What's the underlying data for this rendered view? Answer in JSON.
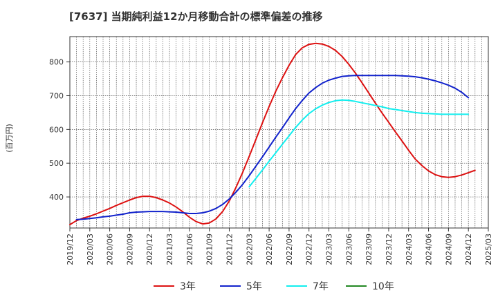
{
  "chart_data": {
    "type": "line",
    "title": "[7637]  当期純利益12か月移動合計の標準偏差の推移",
    "ylabel": "(百万円)",
    "xlabel": "",
    "x_tick_labels": [
      "2019/12",
      "2020/03",
      "2020/06",
      "2020/09",
      "2020/12",
      "2021/03",
      "2021/06",
      "2021/09",
      "2021/12",
      "2022/03",
      "2022/06",
      "2022/09",
      "2022/12",
      "2023/03",
      "2023/06",
      "2023/09",
      "2023/12",
      "2024/03",
      "2024/06",
      "2024/09",
      "2024/12",
      "2025/03"
    ],
    "y_ticks": [
      400,
      500,
      600,
      700,
      800
    ],
    "xlim": [
      "2019/12",
      "2025/03"
    ],
    "ylim": [
      308,
      875
    ],
    "grid": true,
    "legend_position": "bottom",
    "series": [
      {
        "name": "3年",
        "color": "#dd1111",
        "points": [
          [
            "2019/12",
            318
          ],
          [
            "2020/01",
            330
          ],
          [
            "2020/02",
            337
          ],
          [
            "2020/03",
            343
          ],
          [
            "2020/04",
            350
          ],
          [
            "2020/05",
            358
          ],
          [
            "2020/06",
            366
          ],
          [
            "2020/07",
            375
          ],
          [
            "2020/08",
            383
          ],
          [
            "2020/09",
            391
          ],
          [
            "2020/10",
            398
          ],
          [
            "2020/11",
            402
          ],
          [
            "2020/12",
            402
          ],
          [
            "2021/01",
            398
          ],
          [
            "2021/02",
            391
          ],
          [
            "2021/03",
            382
          ],
          [
            "2021/04",
            370
          ],
          [
            "2021/05",
            356
          ],
          [
            "2021/06",
            340
          ],
          [
            "2021/07",
            327
          ],
          [
            "2021/08",
            320
          ],
          [
            "2021/09",
            323
          ],
          [
            "2021/10",
            335
          ],
          [
            "2021/11",
            357
          ],
          [
            "2021/12",
            388
          ],
          [
            "2022/01",
            428
          ],
          [
            "2022/02",
            472
          ],
          [
            "2022/03",
            520
          ],
          [
            "2022/04",
            570
          ],
          [
            "2022/05",
            620
          ],
          [
            "2022/06",
            668
          ],
          [
            "2022/07",
            713
          ],
          [
            "2022/08",
            753
          ],
          [
            "2022/09",
            790
          ],
          [
            "2022/10",
            822
          ],
          [
            "2022/11",
            842
          ],
          [
            "2022/12",
            852
          ],
          [
            "2023/01",
            855
          ],
          [
            "2023/02",
            853
          ],
          [
            "2023/03",
            846
          ],
          [
            "2023/04",
            834
          ],
          [
            "2023/05",
            816
          ],
          [
            "2023/06",
            793
          ],
          [
            "2023/07",
            767
          ],
          [
            "2023/08",
            738
          ],
          [
            "2023/09",
            708
          ],
          [
            "2023/10",
            678
          ],
          [
            "2023/11",
            649
          ],
          [
            "2023/12",
            621
          ],
          [
            "2024/01",
            593
          ],
          [
            "2024/02",
            566
          ],
          [
            "2024/03",
            538
          ],
          [
            "2024/04",
            512
          ],
          [
            "2024/05",
            493
          ],
          [
            "2024/06",
            477
          ],
          [
            "2024/07",
            466
          ],
          [
            "2024/08",
            460
          ],
          [
            "2024/09",
            458
          ],
          [
            "2024/10",
            460
          ],
          [
            "2024/11",
            465
          ],
          [
            "2024/12",
            472
          ],
          [
            "2025/01",
            479
          ]
        ]
      },
      {
        "name": "5年",
        "color": "#1122cc",
        "points": [
          [
            "2020/01",
            333
          ],
          [
            "2020/02",
            334
          ],
          [
            "2020/03",
            336
          ],
          [
            "2020/04",
            338
          ],
          [
            "2020/05",
            341
          ],
          [
            "2020/06",
            343
          ],
          [
            "2020/07",
            346
          ],
          [
            "2020/08",
            349
          ],
          [
            "2020/09",
            353
          ],
          [
            "2020/10",
            355
          ],
          [
            "2020/11",
            356
          ],
          [
            "2020/12",
            357
          ],
          [
            "2021/01",
            357
          ],
          [
            "2021/02",
            357
          ],
          [
            "2021/03",
            356
          ],
          [
            "2021/04",
            355
          ],
          [
            "2021/05",
            353
          ],
          [
            "2021/06",
            351
          ],
          [
            "2021/07",
            351
          ],
          [
            "2021/08",
            353
          ],
          [
            "2021/09",
            358
          ],
          [
            "2021/10",
            366
          ],
          [
            "2021/11",
            378
          ],
          [
            "2021/12",
            394
          ],
          [
            "2022/01",
            414
          ],
          [
            "2022/02",
            437
          ],
          [
            "2022/03",
            463
          ],
          [
            "2022/04",
            491
          ],
          [
            "2022/05",
            519
          ],
          [
            "2022/06",
            548
          ],
          [
            "2022/07",
            577
          ],
          [
            "2022/08",
            605
          ],
          [
            "2022/09",
            634
          ],
          [
            "2022/10",
            662
          ],
          [
            "2022/11",
            686
          ],
          [
            "2022/12",
            708
          ],
          [
            "2023/01",
            724
          ],
          [
            "2023/02",
            737
          ],
          [
            "2023/03",
            746
          ],
          [
            "2023/04",
            752
          ],
          [
            "2023/05",
            757
          ],
          [
            "2023/06",
            759
          ],
          [
            "2023/07",
            760
          ],
          [
            "2023/08",
            760
          ],
          [
            "2023/09",
            760
          ],
          [
            "2023/10",
            760
          ],
          [
            "2023/11",
            760
          ],
          [
            "2023/12",
            760
          ],
          [
            "2024/01",
            760
          ],
          [
            "2024/02",
            759
          ],
          [
            "2024/03",
            758
          ],
          [
            "2024/04",
            756
          ],
          [
            "2024/05",
            753
          ],
          [
            "2024/06",
            749
          ],
          [
            "2024/07",
            744
          ],
          [
            "2024/08",
            738
          ],
          [
            "2024/09",
            731
          ],
          [
            "2024/10",
            722
          ],
          [
            "2024/11",
            710
          ],
          [
            "2024/12",
            694
          ]
        ]
      },
      {
        "name": "7年",
        "color": "#11eeee",
        "points": [
          [
            "2022/03",
            430
          ],
          [
            "2022/04",
            455
          ],
          [
            "2022/05",
            480
          ],
          [
            "2022/06",
            506
          ],
          [
            "2022/07",
            531
          ],
          [
            "2022/08",
            556
          ],
          [
            "2022/09",
            581
          ],
          [
            "2022/10",
            606
          ],
          [
            "2022/11",
            628
          ],
          [
            "2022/12",
            647
          ],
          [
            "2023/01",
            661
          ],
          [
            "2023/02",
            672
          ],
          [
            "2023/03",
            680
          ],
          [
            "2023/04",
            685
          ],
          [
            "2023/05",
            687
          ],
          [
            "2023/06",
            686
          ],
          [
            "2023/07",
            683
          ],
          [
            "2023/08",
            679
          ],
          [
            "2023/09",
            675
          ],
          [
            "2023/10",
            671
          ],
          [
            "2023/11",
            667
          ],
          [
            "2023/12",
            662
          ],
          [
            "2024/01",
            659
          ],
          [
            "2024/02",
            656
          ],
          [
            "2024/03",
            653
          ],
          [
            "2024/04",
            650
          ],
          [
            "2024/05",
            648
          ],
          [
            "2024/06",
            647
          ],
          [
            "2024/07",
            646
          ],
          [
            "2024/08",
            645
          ],
          [
            "2024/09",
            645
          ],
          [
            "2024/10",
            645
          ],
          [
            "2024/11",
            645
          ],
          [
            "2024/12",
            645
          ]
        ]
      },
      {
        "name": "10年",
        "color": "#228822",
        "points": []
      }
    ]
  }
}
